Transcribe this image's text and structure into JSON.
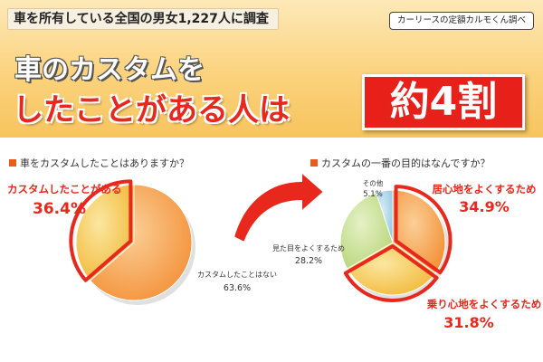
{
  "header": {
    "survey_label": "車を所有している全国の男女1,227人に調査",
    "source_label": "カーリースの定額カルモくん調べ",
    "headline_line1": "車のカスタムを",
    "headline_line2": "したことがある人は",
    "highlight": "約4割"
  },
  "colors": {
    "header_bg": "#fbd27c",
    "accent_red": "#e8281c",
    "highlight_orange": "#f39a3c"
  },
  "icons": [
    "curved-arrow-icon"
  ],
  "chart_data": [
    {
      "type": "pie",
      "title": "車をカスタムしたことはありますか？",
      "slices": [
        {
          "label": "カスタムしたことがある",
          "value": 36.4,
          "value_label": "36.4%",
          "highlight": true,
          "color": "#f5c04a"
        },
        {
          "label": "カスタムしたことはない",
          "value": 63.6,
          "value_label": "63.6%",
          "highlight": false,
          "color": "#f6a24e"
        }
      ]
    },
    {
      "type": "pie",
      "title": "カスタムの一番の目的はなんですか？",
      "slices": [
        {
          "label": "居心地をよくするため",
          "value": 34.9,
          "value_label": "34.9%",
          "highlight": true,
          "color": "#f49a3f"
        },
        {
          "label": "乗り心地をよくするため",
          "value": 31.8,
          "value_label": "31.8%",
          "highlight": true,
          "color": "#f6cf55"
        },
        {
          "label": "見た目をよくするため",
          "value": 28.2,
          "value_label": "28.2%",
          "highlight": false,
          "color": "#c6de8e"
        },
        {
          "label": "その他",
          "value": 5.1,
          "value_label": "5.1%",
          "highlight": false,
          "color": "#a9d3ea"
        }
      ]
    }
  ]
}
